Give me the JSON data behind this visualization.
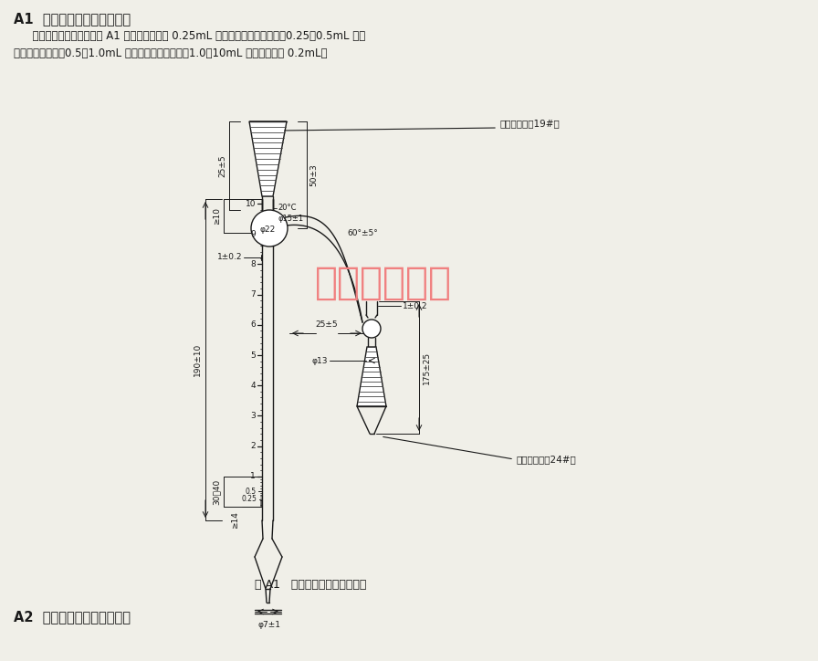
{
  "title_a1": "A1  糠醛水分测定专用接受器",
  "body_text_line1": "  该接受器的规格尺寸如图 A1 所示。其刻度在 0.25mL 以下设有十等分的刻线；0.25～0.5mL 之间",
  "body_text_line2": "设五等分的刻线；0.5～1.0mL 之间设五等分的刻线；1.0～10mL 之间每分度为 0.2mL。",
  "fig_caption": "图 A1   糠醛水分测定专用接受器",
  "title_a2": "A2  糠醛馏程测定专用温度计",
  "watermark": "瑞博化玻仪器",
  "label_standard_inner": "标准内磨口（19#）",
  "label_standard_outer": "标准外磨口（24#）",
  "label_25_5": "25±5",
  "label_50_3": "50±3",
  "label_phi22": "φ22",
  "label_1_02_top": "1±0.2",
  "label_20c": "20°C",
  "label_phi15_1": "φ15±1",
  "label_190_10": "190±10",
  "label_x10": "≥10",
  "label_60deg": "60°±5°",
  "label_25_5b": "25±5",
  "label_1_02_right": "1±0.2",
  "label_175_25": "175±25",
  "label_phi13": "φ13",
  "label_30_40": "30～40",
  "label_x14": "≥14",
  "label_phi7_1": "φ7±1",
  "bg_color": "#f0efe8",
  "line_color": "#1a1a1a",
  "watermark_color": "#f08080",
  "grad_marks_right": [
    "0.25",
    "0.5",
    "1",
    "2",
    "3",
    "4",
    "5",
    "6",
    "7",
    "8",
    "9",
    "10"
  ]
}
